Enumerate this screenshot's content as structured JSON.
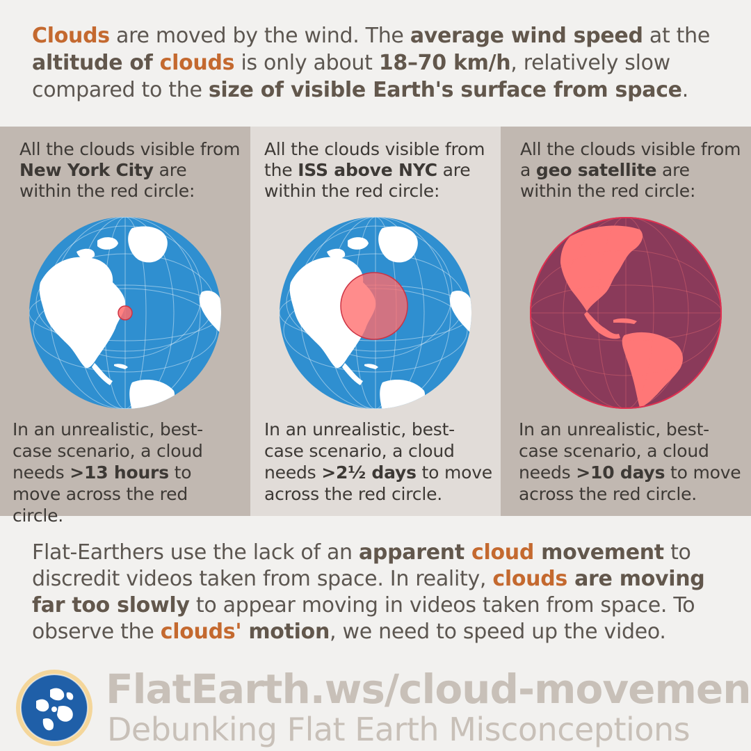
{
  "intro": {
    "t1": "Clouds",
    "t2": " are moved by the wind. The ",
    "t3": "average wind speed",
    "t4": " at the ",
    "t5": "altitude of ",
    "t6": "clouds",
    "t7": " is only about ",
    "t8": "18–70 km/h",
    "t9": ", relatively slow compared to the ",
    "t10": "size of visible Earth's surface from space",
    "t11": "."
  },
  "panels": [
    {
      "cap_pre": "All the clouds visible from ",
      "cap_bold": "New York City",
      "cap_post": " are within the red circle:",
      "foot_pre": "In an unrealistic, best-case scenario, a cloud needs ",
      "foot_bold": ">13 hours",
      "foot_post": " to move across the red circle."
    },
    {
      "cap_pre": "All the clouds visible from the ",
      "cap_bold": "ISS above NYC",
      "cap_post": " are within the red circle:",
      "foot_pre": "In an unrealistic, best-case scenario, a cloud needs ",
      "foot_bold": ">2½ days",
      "foot_post": " to move across the red circle."
    },
    {
      "cap_pre": "All the clouds visible from a ",
      "cap_bold": "geo satellite",
      "cap_post": " are within the red circle:",
      "foot_pre": "In an unrealistic, best-case scenario, a cloud needs ",
      "foot_bold": ">10 days",
      "foot_post": " to move across the red circle."
    }
  ],
  "outro": {
    "t1": "Flat-Earthers use the lack of an ",
    "t2": "apparent ",
    "t3": "cloud",
    "t4": " movement",
    "t5": " to discredit videos taken from space. In reality, ",
    "t6": "clouds",
    "t7": " are moving far too slowly",
    "t8": " to appear moving in videos taken from space. To observe the ",
    "t9": "clouds'",
    "t10": " motion",
    "t11": ", we need to speed up the video."
  },
  "footer": {
    "url": "FlatEarth.ws/cloud-movement",
    "tagline": "Debunking Flat Earth Misconceptions"
  },
  "colors": {
    "ocean": "#2f8fd0",
    "land": "#ffffff",
    "highlight": "#ff6b6b",
    "accent": "#c4692f",
    "panel_dark": "#c1b8b1",
    "panel_light": "#e1dcd8"
  },
  "icons": {
    "logo": "globe-logo-icon"
  }
}
